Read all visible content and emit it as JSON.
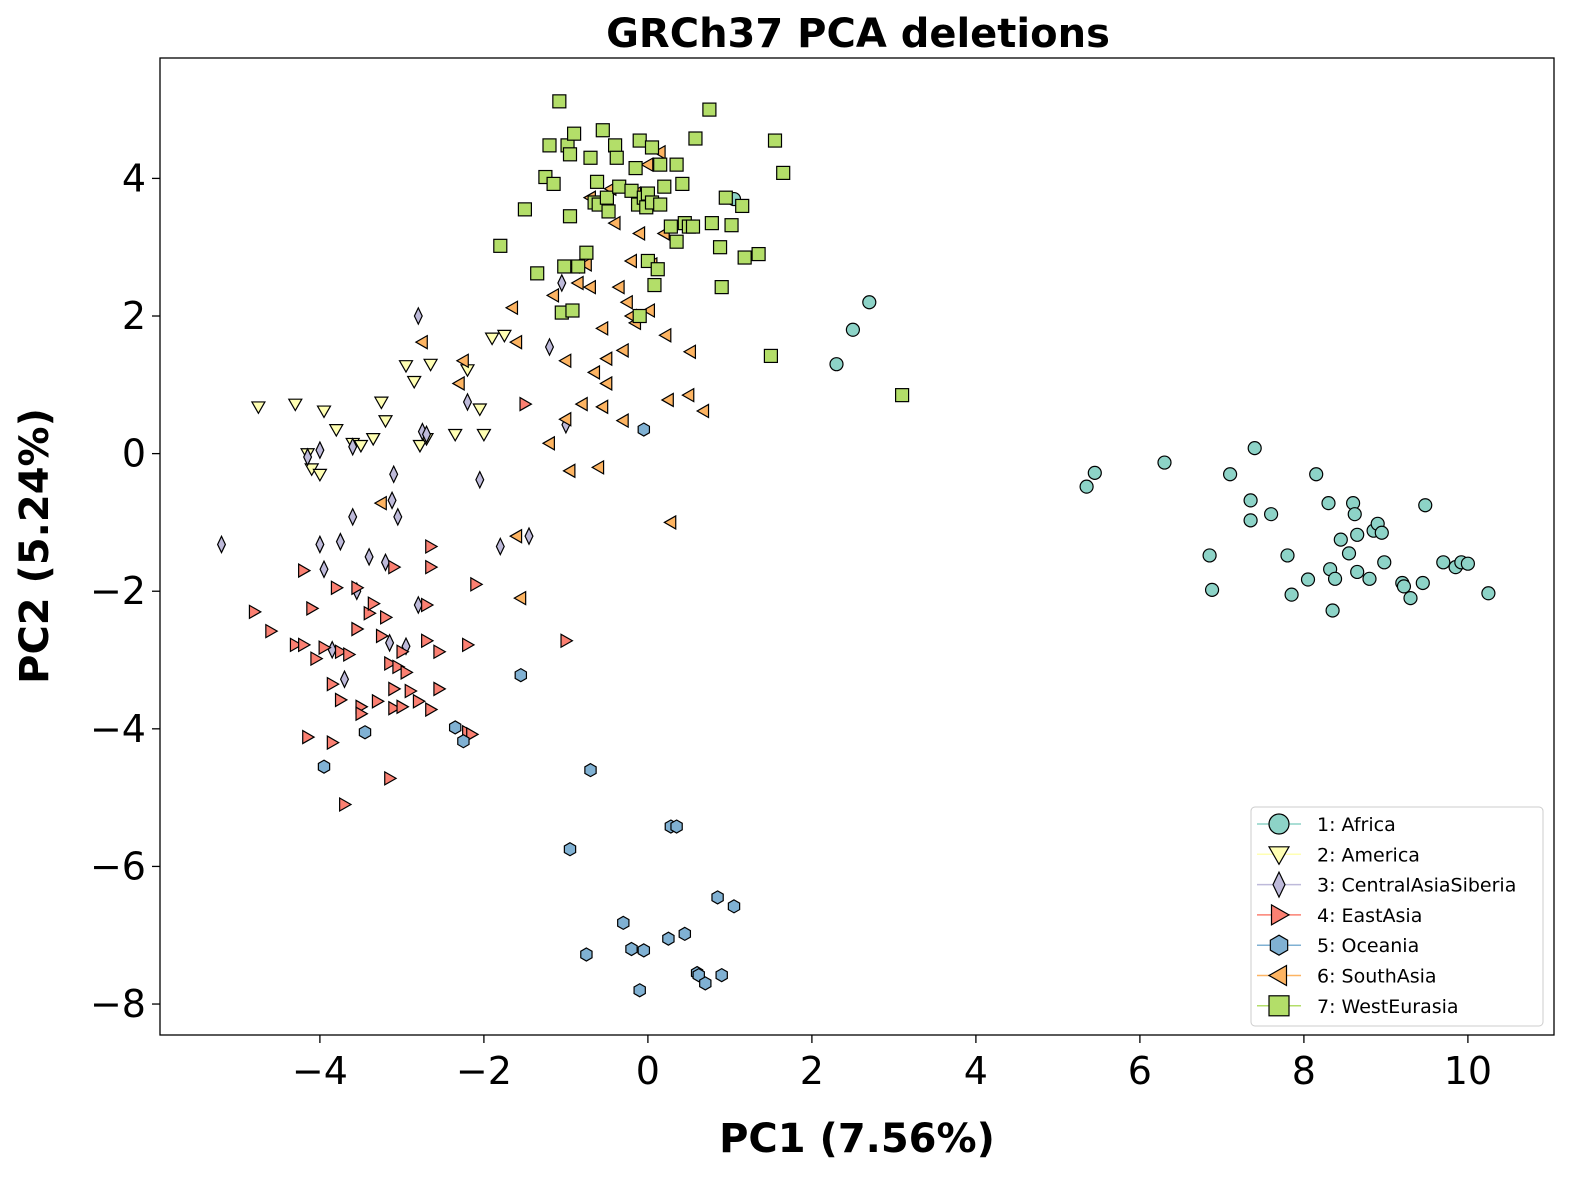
{
  "chart_data": {
    "type": "scatter",
    "title": "GRCh37 PCA deletions",
    "xlabel": "PC1 (7.56%)",
    "ylabel": "PC2 (5.24%)",
    "xlim": [
      -5.95,
      11.05
    ],
    "ylim": [
      -8.45,
      5.75
    ],
    "xticks": [
      -4,
      -2,
      0,
      2,
      4,
      6,
      8,
      10
    ],
    "yticks": [
      -8,
      -6,
      -4,
      -2,
      0,
      2,
      4
    ],
    "legend_position": "lower-right",
    "series": [
      {
        "name": "1: Africa",
        "marker": "circle",
        "color": "#8dd3c7",
        "points": [
          [
            1.05,
            3.7
          ],
          [
            2.3,
            1.3
          ],
          [
            2.5,
            1.8
          ],
          [
            2.7,
            2.2
          ],
          [
            5.35,
            -0.48
          ],
          [
            5.45,
            -0.28
          ],
          [
            6.3,
            -0.13
          ],
          [
            6.85,
            -1.48
          ],
          [
            6.88,
            -1.98
          ],
          [
            7.1,
            -0.3
          ],
          [
            7.35,
            -0.68
          ],
          [
            7.35,
            -0.97
          ],
          [
            7.4,
            0.08
          ],
          [
            7.6,
            -0.88
          ],
          [
            7.8,
            -1.48
          ],
          [
            7.85,
            -2.05
          ],
          [
            8.05,
            -1.83
          ],
          [
            8.15,
            -0.3
          ],
          [
            8.3,
            -0.72
          ],
          [
            8.32,
            -1.68
          ],
          [
            8.35,
            -2.28
          ],
          [
            8.38,
            -1.82
          ],
          [
            8.45,
            -1.25
          ],
          [
            8.55,
            -1.45
          ],
          [
            8.6,
            -0.72
          ],
          [
            8.62,
            -0.88
          ],
          [
            8.65,
            -1.18
          ],
          [
            8.65,
            -1.72
          ],
          [
            8.8,
            -1.82
          ],
          [
            8.85,
            -1.12
          ],
          [
            8.9,
            -1.02
          ],
          [
            8.95,
            -1.15
          ],
          [
            8.98,
            -1.58
          ],
          [
            9.2,
            -1.88
          ],
          [
            9.22,
            -1.93
          ],
          [
            9.3,
            -2.1
          ],
          [
            9.45,
            -1.88
          ],
          [
            9.48,
            -0.75
          ],
          [
            9.7,
            -1.58
          ],
          [
            9.85,
            -1.65
          ],
          [
            9.92,
            -1.58
          ],
          [
            10.0,
            -1.6
          ],
          [
            10.25,
            -2.03
          ]
        ]
      },
      {
        "name": "2: America",
        "marker": "triangle-down",
        "color": "#ffffb3",
        "points": [
          [
            -4.75,
            0.68
          ],
          [
            -4.3,
            0.72
          ],
          [
            -4.15,
            0.0
          ],
          [
            -4.1,
            -0.22
          ],
          [
            -4.0,
            -0.3
          ],
          [
            -3.95,
            0.62
          ],
          [
            -3.8,
            0.35
          ],
          [
            -3.6,
            0.15
          ],
          [
            -3.5,
            0.12
          ],
          [
            -3.35,
            0.22
          ],
          [
            -3.25,
            0.75
          ],
          [
            -3.2,
            0.48
          ],
          [
            -2.95,
            1.28
          ],
          [
            -2.85,
            1.05
          ],
          [
            -2.78,
            0.12
          ],
          [
            -2.7,
            0.22
          ],
          [
            -2.65,
            1.3
          ],
          [
            -2.35,
            0.28
          ],
          [
            -2.2,
            1.22
          ],
          [
            -2.05,
            0.65
          ],
          [
            -2.0,
            0.28
          ],
          [
            -1.9,
            1.68
          ],
          [
            -1.75,
            1.72
          ]
        ]
      },
      {
        "name": "3: CentralAsiaSiberia",
        "marker": "diamond",
        "color": "#bebada",
        "points": [
          [
            -5.2,
            -1.32
          ],
          [
            -4.15,
            -0.05
          ],
          [
            -4.0,
            0.05
          ],
          [
            -4.0,
            -1.32
          ],
          [
            -3.95,
            -1.68
          ],
          [
            -3.85,
            -2.85
          ],
          [
            -3.75,
            -1.28
          ],
          [
            -3.7,
            -3.28
          ],
          [
            -3.6,
            0.1
          ],
          [
            -3.6,
            -0.92
          ],
          [
            -3.55,
            -2.0
          ],
          [
            -3.4,
            -1.5
          ],
          [
            -3.2,
            -1.58
          ],
          [
            -3.15,
            -2.75
          ],
          [
            -3.12,
            -0.68
          ],
          [
            -3.1,
            -0.3
          ],
          [
            -3.05,
            -0.92
          ],
          [
            -2.95,
            -2.8
          ],
          [
            -2.8,
            -2.2
          ],
          [
            -2.8,
            2.0
          ],
          [
            -2.75,
            0.32
          ],
          [
            -2.7,
            0.28
          ],
          [
            -2.2,
            0.75
          ],
          [
            -2.05,
            -0.38
          ],
          [
            -1.8,
            -1.35
          ],
          [
            -1.45,
            -1.2
          ],
          [
            -1.2,
            1.55
          ],
          [
            -1.05,
            2.48
          ],
          [
            -1.0,
            0.42
          ]
        ]
      },
      {
        "name": "4: EastAsia",
        "marker": "triangle-right",
        "color": "#fb8072",
        "points": [
          [
            -4.8,
            -2.3
          ],
          [
            -4.6,
            -2.58
          ],
          [
            -4.3,
            -2.78
          ],
          [
            -4.2,
            -1.7
          ],
          [
            -4.2,
            -2.78
          ],
          [
            -4.15,
            -4.12
          ],
          [
            -4.1,
            -2.25
          ],
          [
            -4.05,
            -2.98
          ],
          [
            -3.95,
            -2.82
          ],
          [
            -3.85,
            -3.35
          ],
          [
            -3.85,
            -4.2
          ],
          [
            -3.8,
            -1.95
          ],
          [
            -3.75,
            -3.58
          ],
          [
            -3.75,
            -2.88
          ],
          [
            -3.7,
            -5.1
          ],
          [
            -3.65,
            -2.92
          ],
          [
            -3.55,
            -1.95
          ],
          [
            -3.55,
            -2.55
          ],
          [
            -3.5,
            -3.68
          ],
          [
            -3.5,
            -3.78
          ],
          [
            -3.4,
            -2.32
          ],
          [
            -3.35,
            -2.18
          ],
          [
            -3.3,
            -3.6
          ],
          [
            -3.25,
            -2.65
          ],
          [
            -3.2,
            -2.38
          ],
          [
            -3.15,
            -3.05
          ],
          [
            -3.15,
            -4.72
          ],
          [
            -3.1,
            -1.65
          ],
          [
            -3.1,
            -3.7
          ],
          [
            -3.1,
            -3.42
          ],
          [
            -3.05,
            -3.1
          ],
          [
            -3.0,
            -2.88
          ],
          [
            -3.0,
            -3.68
          ],
          [
            -2.95,
            -3.18
          ],
          [
            -2.9,
            -3.45
          ],
          [
            -2.8,
            -3.6
          ],
          [
            -2.7,
            -2.2
          ],
          [
            -2.7,
            -2.72
          ],
          [
            -2.65,
            -3.72
          ],
          [
            -2.65,
            -1.35
          ],
          [
            -2.65,
            -1.65
          ],
          [
            -2.55,
            -3.42
          ],
          [
            -2.55,
            -2.88
          ],
          [
            -2.2,
            -2.78
          ],
          [
            -2.2,
            -4.05
          ],
          [
            -2.15,
            -4.08
          ],
          [
            -2.1,
            -1.9
          ],
          [
            -1.5,
            0.72
          ],
          [
            -1.0,
            -2.72
          ]
        ]
      },
      {
        "name": "5: Oceania",
        "marker": "hexagon",
        "color": "#80b1d3",
        "points": [
          [
            -3.95,
            -4.55
          ],
          [
            -3.45,
            -4.05
          ],
          [
            -2.35,
            -3.98
          ],
          [
            -2.25,
            -4.18
          ],
          [
            -1.55,
            -3.22
          ],
          [
            -0.95,
            -5.75
          ],
          [
            -0.75,
            -7.28
          ],
          [
            -0.7,
            -4.6
          ],
          [
            -0.3,
            -6.82
          ],
          [
            -0.2,
            -7.2
          ],
          [
            -0.1,
            -7.8
          ],
          [
            -0.05,
            -7.22
          ],
          [
            -0.05,
            0.35
          ],
          [
            0.25,
            -7.05
          ],
          [
            0.28,
            -5.42
          ],
          [
            0.35,
            -5.42
          ],
          [
            0.45,
            -6.98
          ],
          [
            0.6,
            -7.55
          ],
          [
            0.62,
            -7.58
          ],
          [
            0.7,
            -7.7
          ],
          [
            0.85,
            -6.45
          ],
          [
            0.9,
            -7.58
          ],
          [
            1.05,
            -6.58
          ]
        ]
      },
      {
        "name": "6: SouthAsia",
        "marker": "triangle-left",
        "color": "#fdb462",
        "points": [
          [
            -3.25,
            -0.72
          ],
          [
            -2.75,
            1.62
          ],
          [
            -2.3,
            1.02
          ],
          [
            -2.25,
            1.35
          ],
          [
            -1.65,
            2.12
          ],
          [
            -1.6,
            1.62
          ],
          [
            -1.6,
            -1.2
          ],
          [
            -1.55,
            -2.1
          ],
          [
            -1.2,
            0.15
          ],
          [
            -1.15,
            2.3
          ],
          [
            -1.0,
            1.35
          ],
          [
            -1.0,
            0.5
          ],
          [
            -0.95,
            -0.25
          ],
          [
            -0.9,
            2.72
          ],
          [
            -0.85,
            2.48
          ],
          [
            -0.8,
            0.72
          ],
          [
            -0.75,
            2.75
          ],
          [
            -0.7,
            3.72
          ],
          [
            -0.7,
            2.42
          ],
          [
            -0.65,
            1.18
          ],
          [
            -0.6,
            -0.2
          ],
          [
            -0.55,
            0.68
          ],
          [
            -0.55,
            1.82
          ],
          [
            -0.5,
            1.02
          ],
          [
            -0.5,
            1.38
          ],
          [
            -0.45,
            3.85
          ],
          [
            -0.4,
            3.35
          ],
          [
            -0.35,
            2.42
          ],
          [
            -0.3,
            1.5
          ],
          [
            -0.3,
            0.48
          ],
          [
            -0.25,
            2.2
          ],
          [
            -0.2,
            2.8
          ],
          [
            -0.2,
            2.0
          ],
          [
            -0.15,
            3.78
          ],
          [
            -0.15,
            1.9
          ],
          [
            -0.1,
            3.2
          ],
          [
            -0.05,
            3.68
          ],
          [
            0.0,
            4.2
          ],
          [
            0.02,
            2.08
          ],
          [
            0.05,
            2.75
          ],
          [
            0.15,
            4.38
          ],
          [
            0.2,
            3.2
          ],
          [
            0.22,
            1.72
          ],
          [
            0.25,
            0.78
          ],
          [
            0.28,
            -1.0
          ],
          [
            0.52,
            1.48
          ],
          [
            0.5,
            0.85
          ],
          [
            0.68,
            0.62
          ]
        ]
      },
      {
        "name": "7: WestEurasia",
        "marker": "square",
        "color": "#b3de69",
        "points": [
          [
            -1.8,
            3.02
          ],
          [
            -1.5,
            3.55
          ],
          [
            -1.35,
            2.62
          ],
          [
            -1.25,
            4.02
          ],
          [
            -1.2,
            4.48
          ],
          [
            -1.15,
            3.92
          ],
          [
            -1.08,
            5.12
          ],
          [
            -1.05,
            2.05
          ],
          [
            -1.02,
            2.72
          ],
          [
            -0.98,
            4.48
          ],
          [
            -0.95,
            4.35
          ],
          [
            -0.95,
            3.45
          ],
          [
            -0.92,
            2.08
          ],
          [
            -0.9,
            4.65
          ],
          [
            -0.85,
            2.72
          ],
          [
            -0.75,
            2.92
          ],
          [
            -0.7,
            4.3
          ],
          [
            -0.65,
            3.65
          ],
          [
            -0.62,
            3.95
          ],
          [
            -0.6,
            3.62
          ],
          [
            -0.55,
            4.7
          ],
          [
            -0.5,
            3.72
          ],
          [
            -0.48,
            3.52
          ],
          [
            -0.4,
            4.48
          ],
          [
            -0.38,
            4.3
          ],
          [
            -0.35,
            3.88
          ],
          [
            -0.2,
            3.82
          ],
          [
            -0.15,
            4.15
          ],
          [
            -0.12,
            3.62
          ],
          [
            -0.1,
            4.55
          ],
          [
            -0.1,
            2.0
          ],
          [
            -0.05,
            3.72
          ],
          [
            -0.02,
            3.58
          ],
          [
            0.0,
            3.78
          ],
          [
            0.0,
            2.8
          ],
          [
            0.05,
            4.45
          ],
          [
            0.05,
            3.65
          ],
          [
            0.08,
            2.45
          ],
          [
            0.12,
            2.68
          ],
          [
            0.15,
            3.62
          ],
          [
            0.15,
            4.2
          ],
          [
            0.2,
            3.88
          ],
          [
            0.28,
            3.3
          ],
          [
            0.35,
            4.2
          ],
          [
            0.35,
            3.08
          ],
          [
            0.42,
            3.92
          ],
          [
            0.45,
            3.35
          ],
          [
            0.5,
            3.3
          ],
          [
            0.55,
            3.3
          ],
          [
            0.58,
            4.58
          ],
          [
            0.75,
            5.0
          ],
          [
            0.78,
            3.35
          ],
          [
            0.88,
            3.0
          ],
          [
            0.9,
            2.42
          ],
          [
            0.95,
            3.72
          ],
          [
            1.02,
            3.32
          ],
          [
            1.15,
            3.6
          ],
          [
            1.18,
            2.85
          ],
          [
            1.35,
            2.9
          ],
          [
            1.5,
            1.42
          ],
          [
            1.55,
            4.55
          ],
          [
            1.65,
            4.08
          ],
          [
            3.1,
            0.85
          ]
        ]
      }
    ]
  }
}
